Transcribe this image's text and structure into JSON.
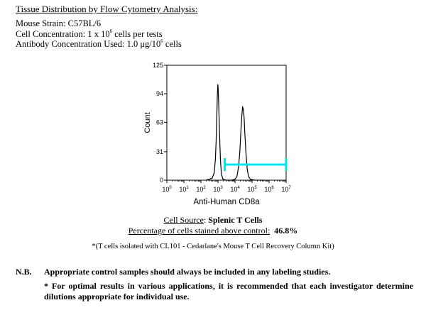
{
  "header": {
    "title": "Tissue Distribution by Flow Cytometry Analysis:",
    "strain_label": "Mouse Strain:",
    "strain_value": "C57BL/6",
    "cell_conc_label": "Cell Concentration:",
    "cell_conc_pre": "1 x 10",
    "cell_conc_exp": "6",
    "cell_conc_post": " cells per tests",
    "ab_conc_label": "Antibody Concentration Used:",
    "ab_conc_pre": "1.0 μg/10",
    "ab_conc_exp": "6",
    "ab_conc_post": " cells"
  },
  "chart_data": {
    "type": "histogram",
    "xlabel": "Anti-Human CD8a",
    "ylabel": "Count",
    "xscale": "log",
    "xlim": [
      1,
      10000000
    ],
    "ylim": [
      0,
      125
    ],
    "yticks": [
      0,
      31,
      63,
      94,
      125
    ],
    "ytick_labels": [
      "0",
      "31",
      "63",
      "94",
      "125"
    ],
    "xticks": [
      1,
      10,
      100,
      1000,
      10000,
      100000,
      1000000,
      10000000
    ],
    "xtick_labels": [
      {
        "base": "10",
        "exp": "0"
      },
      {
        "base": "10",
        "exp": "1"
      },
      {
        "base": "10",
        "exp": "2"
      },
      {
        "base": "10",
        "exp": "3"
      },
      {
        "base": "10",
        "exp": "4"
      },
      {
        "base": "10",
        "exp": "5"
      },
      {
        "base": "10",
        "exp": "6"
      },
      {
        "base": "10",
        "exp": "7"
      }
    ],
    "curve": [
      [
        200,
        0
      ],
      [
        450,
        2
      ],
      [
        600,
        8
      ],
      [
        700,
        22
      ],
      [
        780,
        42
      ],
      [
        850,
        68
      ],
      [
        920,
        92
      ],
      [
        980,
        104
      ],
      [
        1030,
        100
      ],
      [
        1080,
        88
      ],
      [
        1150,
        70
      ],
      [
        1250,
        48
      ],
      [
        1400,
        22
      ],
      [
        1600,
        6
      ],
      [
        2000,
        1
      ],
      [
        3000,
        0
      ],
      [
        6000,
        0
      ],
      [
        10000,
        1
      ],
      [
        13000,
        4
      ],
      [
        16000,
        14
      ],
      [
        19000,
        30
      ],
      [
        22000,
        52
      ],
      [
        25000,
        70
      ],
      [
        28000,
        80
      ],
      [
        31000,
        77
      ],
      [
        34000,
        68
      ],
      [
        38000,
        50
      ],
      [
        44000,
        30
      ],
      [
        52000,
        12
      ],
      [
        62000,
        4
      ],
      [
        80000,
        1
      ],
      [
        150000,
        0
      ],
      [
        500000,
        0
      ]
    ],
    "gate": {
      "x_start": 2500,
      "x_end": 10000000,
      "y": 17,
      "color": "#00e5ee"
    }
  },
  "summary": {
    "source_label": "Cell Source",
    "source_value": "Splenic T Cells",
    "pct_label": "Percentage of cells stained above control",
    "pct_value": "46.8%"
  },
  "footnote": "*(T cells isolated with CL101 - Cedarlane's Mouse T Cell Recovery Column Kit)",
  "nb": {
    "label": "N.B.",
    "text": "Appropriate control samples should always be included in any labeling studies.",
    "note": "* For optimal results in various applications, it is recommended that each investigator determine dilutions appropriate for individual use."
  }
}
